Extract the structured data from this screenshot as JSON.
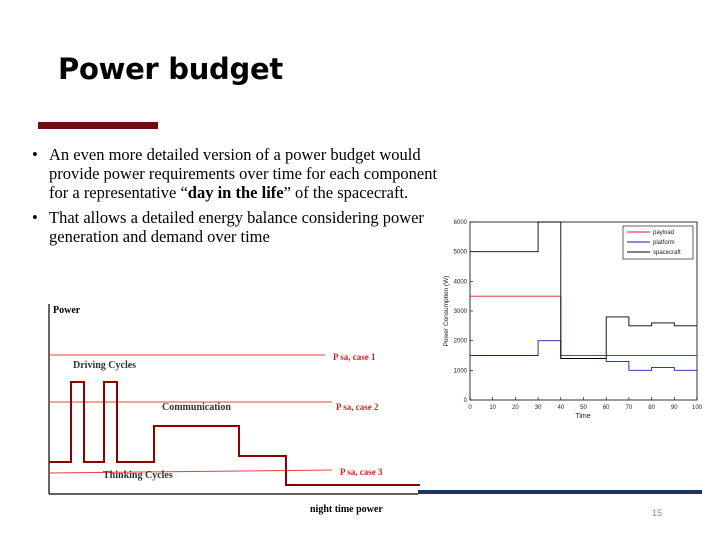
{
  "slide": {
    "title": "Power budget",
    "page_number": "15",
    "accent_color": "#6b0f12",
    "rule_color": "#1f3564"
  },
  "bullets": [
    {
      "before": "An even more detailed version of a power budget would provide power requirements over time for each component for a representative “",
      "bold": "day in the life",
      "after": "” of the spacecraft."
    },
    {
      "before": "That allows a detailed energy balance considering power generation and demand over time",
      "bold": "",
      "after": ""
    }
  ],
  "left_chart": {
    "ylabel": "Power",
    "xlabel": "night time power",
    "annotations": [
      "Driving Cycles",
      "Communication",
      "Thinking Cycles"
    ],
    "reference_lines": [
      "P sa, case 1",
      "P sa, case 2",
      "P sa, case 3"
    ],
    "line_color": "#8b0000",
    "reference_color": "#e84040"
  },
  "chart_data": {
    "type": "line",
    "title": "",
    "xlabel": "Time",
    "ylabel": "Power Consumption (W)",
    "xlim": [
      0,
      100
    ],
    "ylim": [
      0,
      6000
    ],
    "xticks": [
      0,
      10,
      20,
      30,
      40,
      50,
      60,
      70,
      80,
      90,
      100
    ],
    "yticks": [
      0,
      1000,
      2000,
      3000,
      4000,
      5000,
      6000
    ],
    "ytick_labels": [
      "0",
      "1000",
      "2000",
      "3000",
      "4000",
      "5000",
      "6000"
    ],
    "grid": false,
    "legend": "top-right",
    "series": [
      {
        "name": "payload",
        "color": "#d62020",
        "x": [
          0,
          30,
          30,
          40,
          40,
          100
        ],
        "y": [
          3500,
          3500,
          3500,
          3500,
          1500,
          1500
        ]
      },
      {
        "name": "platform",
        "color": "#1a1aa6",
        "x": [
          0,
          30,
          30,
          40,
          40,
          60,
          60,
          70,
          70,
          80,
          80,
          90,
          90,
          100
        ],
        "y": [
          1500,
          1500,
          2000,
          2000,
          1400,
          1400,
          1300,
          1300,
          1000,
          1000,
          1100,
          1100,
          1000,
          1000
        ]
      },
      {
        "name": "spacecraft",
        "color": "#000000",
        "x": [
          0,
          30,
          30,
          40,
          40,
          60,
          60,
          70,
          70,
          80,
          80,
          90,
          90,
          100
        ],
        "y": [
          5000,
          5000,
          6500,
          6500,
          1400,
          1400,
          2800,
          2800,
          2500,
          2500,
          2600,
          2600,
          2500,
          2500
        ]
      }
    ]
  }
}
